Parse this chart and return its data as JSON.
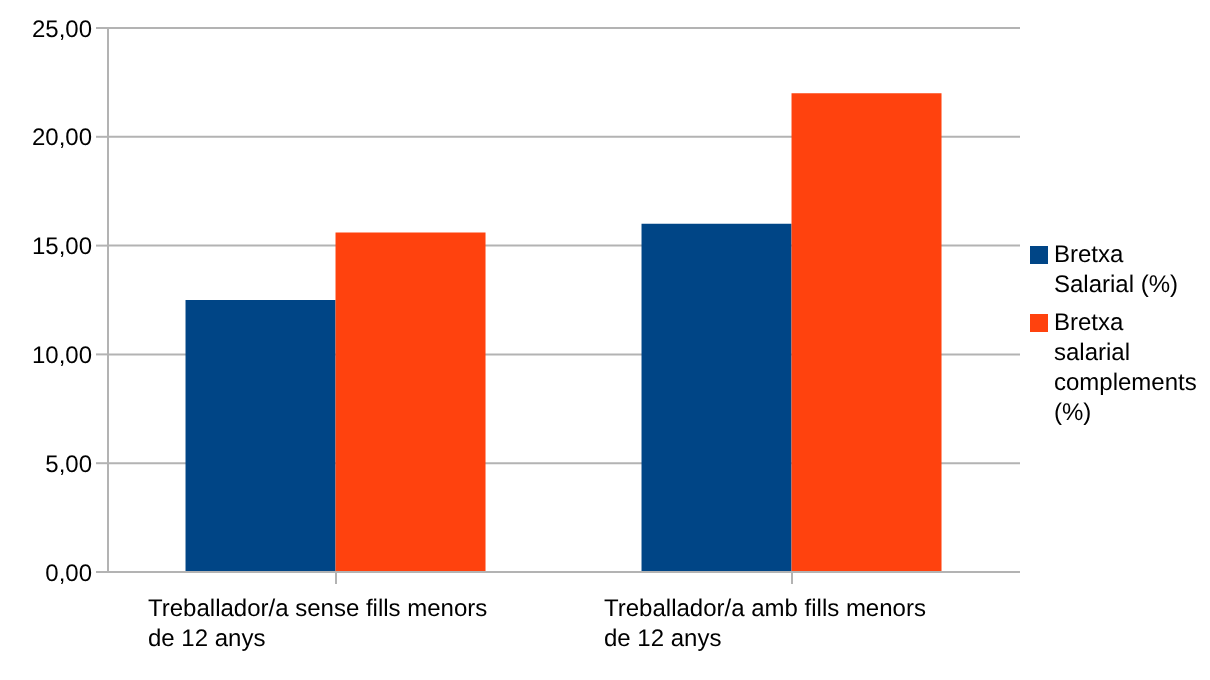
{
  "chart_data": {
    "type": "bar",
    "categories": [
      "Treballador/a sense fills menors de 12 anys",
      "Treballador/a amb fills menors de 12 anys"
    ],
    "series": [
      {
        "name": "Bretxa Salarial (%)",
        "color": "#004586",
        "values": [
          12.5,
          16.0
        ]
      },
      {
        "name": "Bretxa salarial complements (%)",
        "color": "#ff420e",
        "values": [
          15.6,
          22.0
        ]
      }
    ],
    "ylim": [
      0,
      25
    ],
    "yticks": [
      {
        "value": 0,
        "label": "0,00"
      },
      {
        "value": 5,
        "label": "5,00"
      },
      {
        "value": 10,
        "label": "10,00"
      },
      {
        "value": 15,
        "label": "15,00"
      },
      {
        "value": 20,
        "label": "20,00"
      },
      {
        "value": 25,
        "label": "25,00"
      }
    ],
    "grid": "y",
    "legend": "right"
  }
}
